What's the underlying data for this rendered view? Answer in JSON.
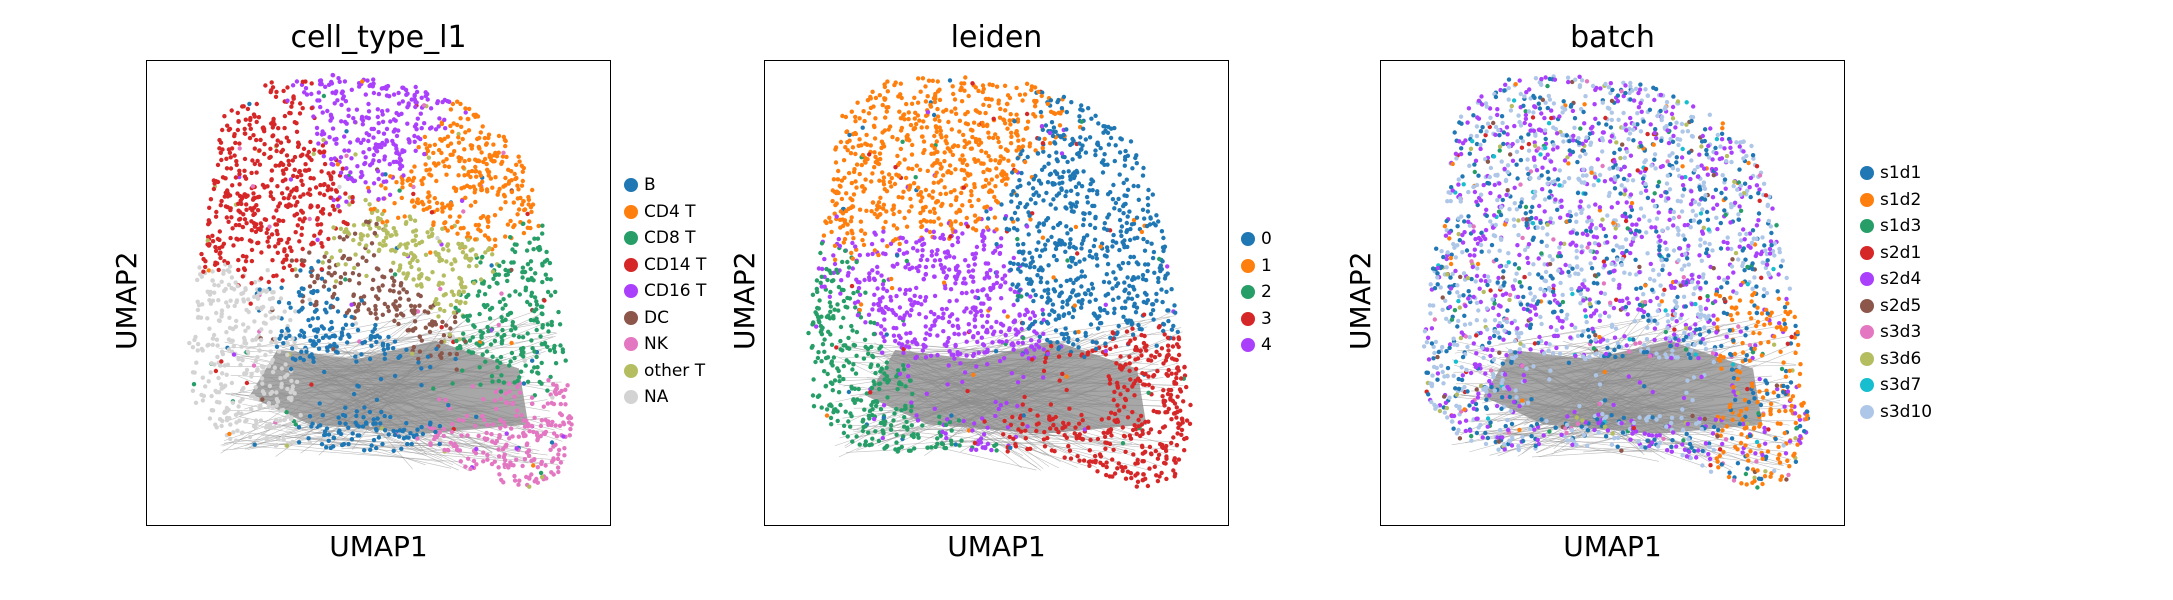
{
  "chart_data": [
    {
      "type": "scatter",
      "title": "cell_type_l1",
      "xlabel": "UMAP1",
      "ylabel": "UMAP2",
      "legend_placement": "right",
      "grid": false,
      "categories": [
        {
          "name": "B",
          "color": "#1f77b4",
          "center": [
            0.47,
            0.35
          ]
        },
        {
          "name": "CD4 T",
          "color": "#ff7f0e",
          "center": [
            0.67,
            0.72
          ]
        },
        {
          "name": "CD8 T",
          "color": "#279e68",
          "center": [
            0.79,
            0.45
          ]
        },
        {
          "name": "CD14 T",
          "color": "#d62728",
          "center": [
            0.27,
            0.78
          ]
        },
        {
          "name": "CD16 T",
          "color": "#aa40fc",
          "center": [
            0.48,
            0.88
          ]
        },
        {
          "name": "DC",
          "color": "#8c564b",
          "center": [
            0.55,
            0.48
          ]
        },
        {
          "name": "NK",
          "color": "#e377c2",
          "center": [
            0.8,
            0.16
          ]
        },
        {
          "name": "other T",
          "color": "#b5bd61",
          "center": [
            0.6,
            0.55
          ]
        },
        {
          "name": "NA",
          "color": "#d3d3d3",
          "center": [
            0.17,
            0.3
          ]
        }
      ]
    },
    {
      "type": "scatter",
      "title": "leiden",
      "xlabel": "UMAP1",
      "ylabel": "UMAP2",
      "legend_placement": "right",
      "grid": false,
      "categories": [
        {
          "name": "0",
          "color": "#1f77b4",
          "center": [
            0.7,
            0.6
          ]
        },
        {
          "name": "1",
          "color": "#ff7f0e",
          "center": [
            0.33,
            0.8
          ]
        },
        {
          "name": "2",
          "color": "#279e68",
          "center": [
            0.16,
            0.3
          ]
        },
        {
          "name": "3",
          "color": "#d62728",
          "center": [
            0.8,
            0.2
          ]
        },
        {
          "name": "4",
          "color": "#aa40fc",
          "center": [
            0.38,
            0.46
          ]
        }
      ]
    },
    {
      "type": "scatter",
      "title": "batch",
      "xlabel": "UMAP1",
      "ylabel": "UMAP2",
      "legend_placement": "right",
      "grid": false,
      "categories": [
        {
          "name": "s1d1",
          "color": "#1f77b4"
        },
        {
          "name": "s1d2",
          "color": "#ff7f0e"
        },
        {
          "name": "s1d3",
          "color": "#279e68"
        },
        {
          "name": "s2d1",
          "color": "#d62728"
        },
        {
          "name": "s2d4",
          "color": "#aa40fc"
        },
        {
          "name": "s2d5",
          "color": "#8c564b"
        },
        {
          "name": "s3d3",
          "color": "#e377c2"
        },
        {
          "name": "s3d6",
          "color": "#b5bd61"
        },
        {
          "name": "s3d7",
          "color": "#17becf"
        },
        {
          "name": "s3d10",
          "color": "#aec7e8"
        }
      ]
    }
  ]
}
